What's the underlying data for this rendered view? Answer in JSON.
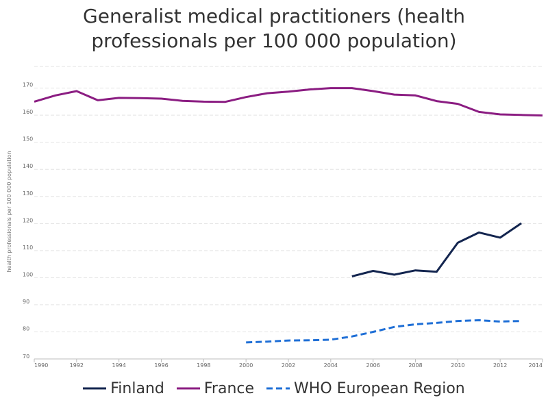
{
  "chart_data": {
    "type": "line",
    "title": "Generalist medical practitioners (health professionals per 100 000 population)",
    "title_lines": [
      "Generalist medical practitioners (health",
      "professionals per 100 000 population)"
    ],
    "ylabel": "health professionals per 100 000 population",
    "xlabel": "",
    "xlim": [
      1990,
      2014
    ],
    "ylim": [
      70,
      178
    ],
    "x_ticks": [
      1990,
      1992,
      1994,
      1996,
      1998,
      2000,
      2002,
      2004,
      2006,
      2008,
      2010,
      2012,
      2014
    ],
    "y_ticks": [
      70,
      80,
      90,
      100,
      110,
      120,
      130,
      140,
      150,
      160,
      170
    ],
    "grid": true,
    "legend_position": "bottom",
    "series": [
      {
        "name": "Finland",
        "color": "#13254f",
        "dash": "solid",
        "x": [
          2005,
          2006,
          2007,
          2008,
          2009,
          2010,
          2011,
          2012,
          2013
        ],
        "y": [
          100.5,
          102.5,
          101.1,
          102.7,
          102.2,
          112.9,
          116.7,
          114.8,
          120.1
        ]
      },
      {
        "name": "France",
        "color": "#8b1d82",
        "dash": "solid",
        "x": [
          1990,
          1991,
          1992,
          1993,
          1994,
          1995,
          1996,
          1997,
          1998,
          1999,
          2000,
          2001,
          2002,
          2003,
          2004,
          2005,
          2006,
          2007,
          2008,
          2009,
          2010,
          2011,
          2012,
          2013,
          2014
        ],
        "y": [
          165.0,
          167.3,
          168.9,
          165.5,
          166.4,
          166.3,
          166.1,
          165.3,
          165.0,
          164.9,
          166.7,
          168.1,
          168.7,
          169.5,
          170.0,
          170.0,
          168.9,
          167.6,
          167.3,
          165.2,
          164.2,
          161.2,
          160.3,
          160.1,
          159.9
        ]
      },
      {
        "name": "WHO European Region",
        "color": "#1f6fd6",
        "dash": "dashed",
        "x": [
          2000,
          2001,
          2002,
          2003,
          2004,
          2005,
          2006,
          2007,
          2008,
          2009,
          2010,
          2011,
          2012,
          2013
        ],
        "y": [
          76.1,
          76.4,
          76.8,
          76.9,
          77.1,
          78.3,
          80.0,
          81.8,
          82.8,
          83.3,
          84.0,
          84.3,
          83.8,
          84.0
        ]
      }
    ]
  }
}
